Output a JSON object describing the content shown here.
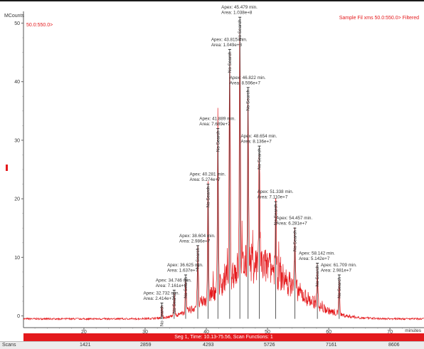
{
  "header": {
    "y_unit_label": "MCounts",
    "range_left": "50.0:550.0>",
    "range_right": "Sample Fil xms 50.0:550.0> Filtered"
  },
  "footer": {
    "segment_text": "Seg 1, Time: 10.13-75.56, Scan Functions: 1",
    "scans_label": "Scans",
    "x_unit": "minutes",
    "scan_ticks": [
      "1421",
      "2859",
      "4293",
      "5726",
      "7161",
      "8606"
    ]
  },
  "chart_data": {
    "type": "line",
    "title": "",
    "xlabel": "minutes",
    "ylabel": "MCounts",
    "xlim": [
      10.13,
      75.56
    ],
    "ylim": [
      -2,
      52
    ],
    "x_ticks": [
      20,
      30,
      40,
      50,
      60,
      70
    ],
    "y_ticks": [
      0,
      10,
      20,
      30,
      40,
      50
    ],
    "trace_color": "#e4191c",
    "peaks": [
      {
        "x": 32.732,
        "y": 2.2,
        "apex": "Apex: 32.732 min.",
        "area": "Area: 2.414e+7",
        "search": "No Search"
      },
      {
        "x": 34.746,
        "y": 4.4,
        "apex": "Apex: 34.746 min.",
        "area": "Area: 7.161e+6",
        "search": "No Search"
      },
      {
        "x": 36.625,
        "y": 7.0,
        "apex": "Apex: 36.625 min.",
        "area": "Area: 1.637e+7",
        "search": "No Search"
      },
      {
        "x": 38.604,
        "y": 12.0,
        "apex": "Apex: 38.604 min.",
        "area": "Area: 2.986e+7",
        "search": "No Search"
      },
      {
        "x": 40.281,
        "y": 22.5,
        "apex": "Apex: 40.281 min.",
        "area": "Area: 5.274e+7",
        "search": "No Search"
      },
      {
        "x": 41.889,
        "y": 32.0,
        "apex": "Apex: 41.889 min.",
        "area": "Area: 7.689e+7",
        "search": "No Search"
      },
      {
        "x": 43.815,
        "y": 45.5,
        "apex": "Apex: 43.815 min.",
        "area": "Area: 1.049e+8",
        "search": "No Search"
      },
      {
        "x": 45.479,
        "y": 51.0,
        "apex": "Apex: 45.479 min.",
        "area": "Area: 1.038e+8",
        "search": "No Search"
      },
      {
        "x": 46.822,
        "y": 39.0,
        "apex": "Apex: 46.822 min.",
        "area": "Area: 8.596e+7",
        "search": "No Search"
      },
      {
        "x": 48.654,
        "y": 29.0,
        "apex": "Apex: 48.654 min.",
        "area": "Area: 8.136e+7",
        "search": "No Search"
      },
      {
        "x": 51.338,
        "y": 19.5,
        "apex": "Apex: 51.338 min.",
        "area": "Area: 7.110e+7",
        "search": "No Search"
      },
      {
        "x": 54.457,
        "y": 15.0,
        "apex": "Apex: 54.457 min.",
        "area": "Area: 6.281e+7",
        "search": "No Search"
      },
      {
        "x": 58.142,
        "y": 9.0,
        "apex": "Apex: 58.142 min.",
        "area": "Area: 5.142e+7",
        "search": "No Search"
      },
      {
        "x": 61.709,
        "y": 7.0,
        "apex": "Apex: 61.709 min.",
        "area": "Area: 2.981e+7",
        "search": "No Search"
      }
    ]
  }
}
